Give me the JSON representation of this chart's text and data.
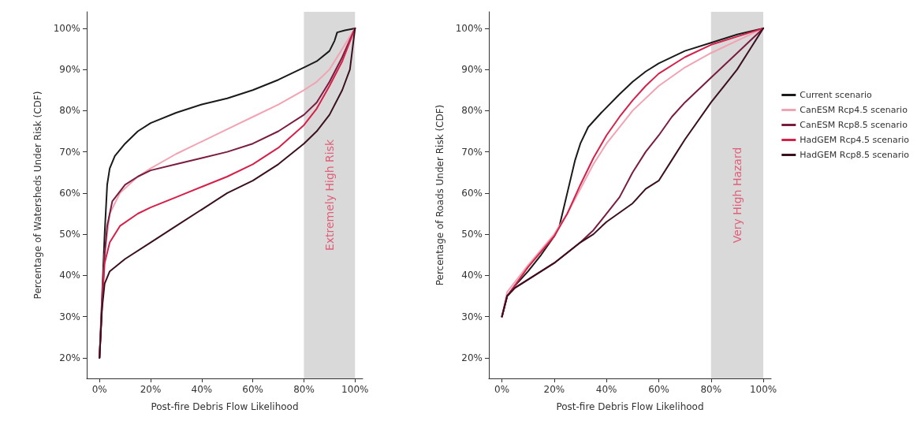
{
  "chart_data": [
    {
      "type": "line",
      "xlabel": "Post-fire Debris Flow Likelihood",
      "ylabel": "Percentage of Watersheds Under Risk (CDF)",
      "xlim": [
        -5,
        103
      ],
      "ylim": [
        15,
        104
      ],
      "xticks": [
        {
          "value": 0,
          "label": "0%"
        },
        {
          "value": 20,
          "label": "20%"
        },
        {
          "value": 40,
          "label": "40%"
        },
        {
          "value": 60,
          "label": "60%"
        },
        {
          "value": 80,
          "label": "80%"
        },
        {
          "value": 100,
          "label": "100%"
        }
      ],
      "yticks": [
        {
          "value": 20,
          "label": "20%"
        },
        {
          "value": 30,
          "label": "30%"
        },
        {
          "value": 40,
          "label": "40%"
        },
        {
          "value": 50,
          "label": "50%"
        },
        {
          "value": 60,
          "label": "60%"
        },
        {
          "value": 70,
          "label": "70%"
        },
        {
          "value": 80,
          "label": "80%"
        },
        {
          "value": 90,
          "label": "90%"
        },
        {
          "value": 100,
          "label": "100%"
        }
      ],
      "grid": false,
      "legend": false,
      "marker": "none",
      "line_style": "solid",
      "bands": [
        {
          "axis": "x",
          "from": 80,
          "to": 100,
          "label": "Extremely High Risk",
          "color": "#d9d9d9"
        }
      ],
      "series": [
        {
          "color": "#1a1a1a",
          "x": [
            0,
            1,
            2,
            3,
            4,
            6,
            10,
            15,
            20,
            30,
            40,
            50,
            60,
            70,
            80,
            85,
            90,
            92,
            93,
            96,
            100
          ],
          "values": [
            20,
            35,
            50,
            62,
            66,
            69,
            72,
            75,
            77,
            79.5,
            81.5,
            83,
            85,
            87.5,
            90.5,
            92,
            94.5,
            97,
            99,
            99.5,
            100
          ]
        },
        {
          "color": "#f2a3b3",
          "x": [
            0,
            1,
            2,
            4,
            8,
            15,
            20,
            30,
            40,
            50,
            60,
            70,
            80,
            85,
            90,
            95,
            100
          ],
          "values": [
            20,
            33,
            45,
            55,
            60,
            64,
            66,
            69.5,
            72.5,
            75.5,
            78.5,
            81.5,
            85,
            87,
            90,
            95,
            100
          ]
        },
        {
          "color": "#7a1c40",
          "x": [
            0,
            1,
            2,
            3,
            5,
            10,
            15,
            20,
            30,
            40,
            50,
            60,
            70,
            80,
            85,
            90,
            95,
            100
          ],
          "values": [
            20,
            33,
            45,
            52,
            58,
            62,
            64,
            65.5,
            67,
            68.5,
            70,
            72,
            75,
            79,
            82,
            87,
            93,
            100
          ]
        },
        {
          "color": "#d6204a",
          "x": [
            0,
            1,
            2,
            4,
            8,
            15,
            20,
            30,
            40,
            50,
            60,
            70,
            80,
            85,
            90,
            95,
            100
          ],
          "values": [
            20,
            33,
            43,
            48,
            52,
            55,
            56.5,
            59,
            61.5,
            64,
            67,
            71,
            76.5,
            80.5,
            86,
            92,
            100
          ]
        },
        {
          "color": "#3a1020",
          "x": [
            0,
            1,
            2,
            4,
            10,
            20,
            30,
            40,
            50,
            60,
            70,
            80,
            85,
            90,
            95,
            98,
            100
          ],
          "values": [
            20,
            32,
            38,
            41,
            44,
            48,
            52,
            56,
            60,
            63,
            67,
            72,
            75,
            79,
            85,
            90,
            100
          ]
        }
      ]
    },
    {
      "type": "line",
      "xlabel": "Post-fire Debris Flow Likelihood",
      "ylabel": "Percentage of Roads Under Risk (CDF)",
      "xlim": [
        -5,
        103
      ],
      "ylim": [
        15,
        104
      ],
      "xticks": [
        {
          "value": 0,
          "label": "0%"
        },
        {
          "value": 20,
          "label": "20%"
        },
        {
          "value": 40,
          "label": "40%"
        },
        {
          "value": 60,
          "label": "60%"
        },
        {
          "value": 80,
          "label": "80%"
        },
        {
          "value": 100,
          "label": "100%"
        }
      ],
      "yticks": [
        {
          "value": 20,
          "label": "20%"
        },
        {
          "value": 30,
          "label": "30%"
        },
        {
          "value": 40,
          "label": "40%"
        },
        {
          "value": 50,
          "label": "50%"
        },
        {
          "value": 60,
          "label": "60%"
        },
        {
          "value": 70,
          "label": "70%"
        },
        {
          "value": 80,
          "label": "80%"
        },
        {
          "value": 90,
          "label": "90%"
        },
        {
          "value": 100,
          "label": "100%"
        }
      ],
      "grid": false,
      "legend": "right",
      "marker": "none",
      "line_style": "solid",
      "bands": [
        {
          "axis": "x",
          "from": 80,
          "to": 100,
          "label": "Very High Hazard",
          "color": "#d9d9d9"
        }
      ],
      "series": [
        {
          "name": "Current scenario",
          "color": "#1a1a1a",
          "x": [
            0,
            2,
            5,
            10,
            15,
            20,
            22,
            25,
            28,
            30,
            33,
            38,
            45,
            50,
            55,
            60,
            70,
            80,
            90,
            100
          ],
          "values": [
            30,
            35,
            37.5,
            41,
            45,
            49.5,
            52,
            60,
            68,
            72,
            76,
            79.5,
            84,
            87,
            89.5,
            91.5,
            94.5,
            96.5,
            98.5,
            100
          ]
        },
        {
          "name": "CanESM Rcp4.5 scenario",
          "color": "#f2a3b3",
          "x": [
            0,
            2,
            10,
            20,
            25,
            30,
            35,
            40,
            45,
            50,
            60,
            70,
            80,
            90,
            100
          ],
          "values": [
            30,
            36,
            42.5,
            50,
            55,
            61,
            67,
            72,
            76,
            80,
            86,
            90.5,
            94,
            97,
            100
          ]
        },
        {
          "name": "CanESM Rcp8.5 scenario",
          "color": "#7a1c40",
          "x": [
            0,
            2,
            5,
            10,
            20,
            30,
            35,
            40,
            45,
            50,
            55,
            60,
            65,
            70,
            80,
            90,
            95,
            100
          ],
          "values": [
            30,
            35,
            37,
            39,
            43,
            48,
            51,
            55,
            59,
            65,
            70,
            74,
            78.5,
            82,
            88,
            94,
            97,
            100
          ]
        },
        {
          "name": "HadGEM Rcp4.5 scenario",
          "color": "#d6204a",
          "x": [
            0,
            2,
            10,
            20,
            25,
            30,
            35,
            40,
            45,
            50,
            55,
            60,
            70,
            80,
            90,
            100
          ],
          "values": [
            30,
            35,
            42,
            49.5,
            55,
            62,
            68.5,
            74,
            78.5,
            82.5,
            86,
            89,
            93,
            96,
            98,
            100
          ]
        },
        {
          "name": "HadGEM Rcp8.5 scenario",
          "color": "#3a1020",
          "x": [
            0,
            2,
            5,
            10,
            20,
            30,
            35,
            40,
            50,
            55,
            60,
            65,
            70,
            80,
            85,
            90,
            95,
            100
          ],
          "values": [
            30,
            35,
            37,
            39,
            43,
            48,
            50,
            53,
            57.5,
            61,
            63,
            68,
            73,
            82,
            86,
            90,
            95,
            100
          ]
        }
      ]
    }
  ]
}
